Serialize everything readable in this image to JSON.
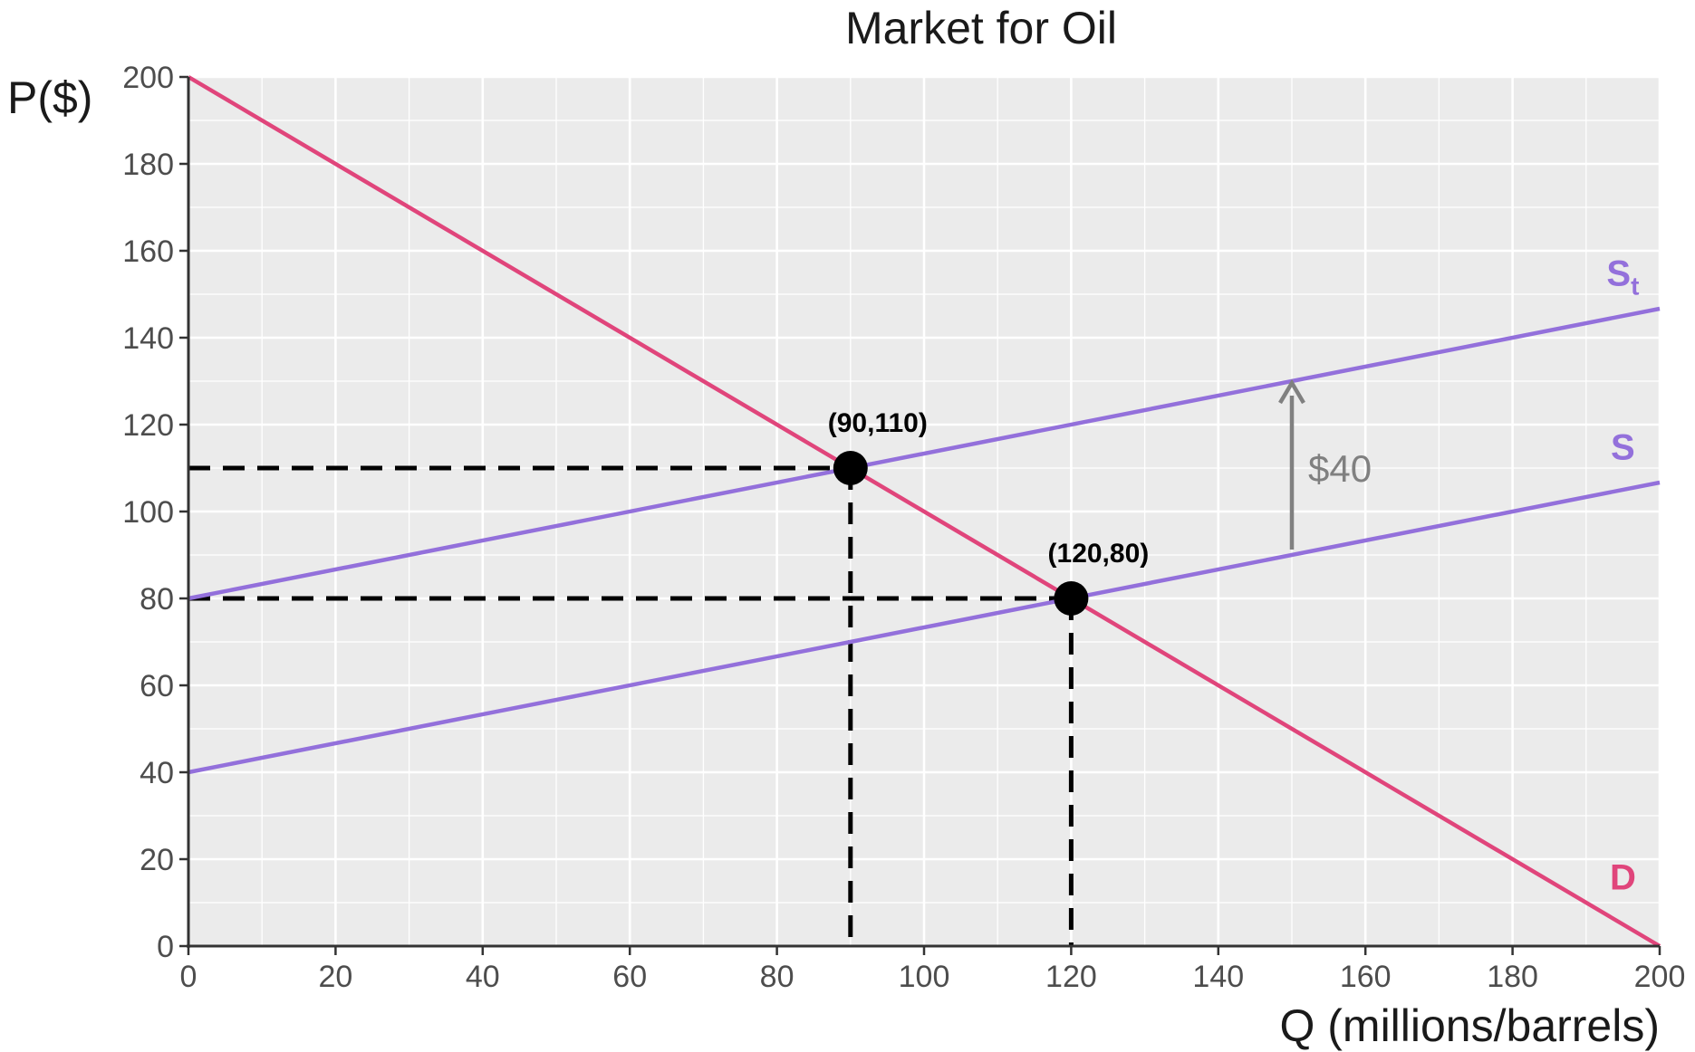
{
  "chart_data": {
    "type": "line",
    "title": "Market for Oil",
    "xlabel": "Q (millions/barrels)",
    "ylabel": "P($)",
    "xlim": [
      0,
      200
    ],
    "ylim": [
      0,
      200
    ],
    "x_ticks": [
      0,
      20,
      40,
      60,
      80,
      100,
      120,
      140,
      160,
      180,
      200
    ],
    "y_ticks": [
      0,
      20,
      40,
      60,
      80,
      100,
      120,
      140,
      160,
      180,
      200
    ],
    "grid": true,
    "series": [
      {
        "name": "D",
        "color": "#e0457b",
        "x": [
          0,
          200
        ],
        "y": [
          200,
          0
        ]
      },
      {
        "name": "S",
        "color": "#9370db",
        "x": [
          0,
          200
        ],
        "y": [
          40,
          106.67
        ]
      },
      {
        "name": "St",
        "color": "#9370db",
        "x": [
          0,
          200
        ],
        "y": [
          80,
          146.67
        ]
      }
    ],
    "curve_labels": [
      {
        "series": "St",
        "text": "S",
        "subscript": "t",
        "x": 195,
        "y": 152
      },
      {
        "series": "S",
        "text": "S",
        "x": 195,
        "y": 112
      },
      {
        "series": "D",
        "text": "D",
        "x": 195,
        "y": 13
      }
    ],
    "points": [
      {
        "x": 90,
        "y": 110,
        "label": "(90,110)"
      },
      {
        "x": 120,
        "y": 80,
        "label": "(120,80)"
      }
    ],
    "tax_shift": {
      "x": 150,
      "from": 90,
      "to": 130,
      "label": "$40",
      "color": "#808080"
    }
  }
}
